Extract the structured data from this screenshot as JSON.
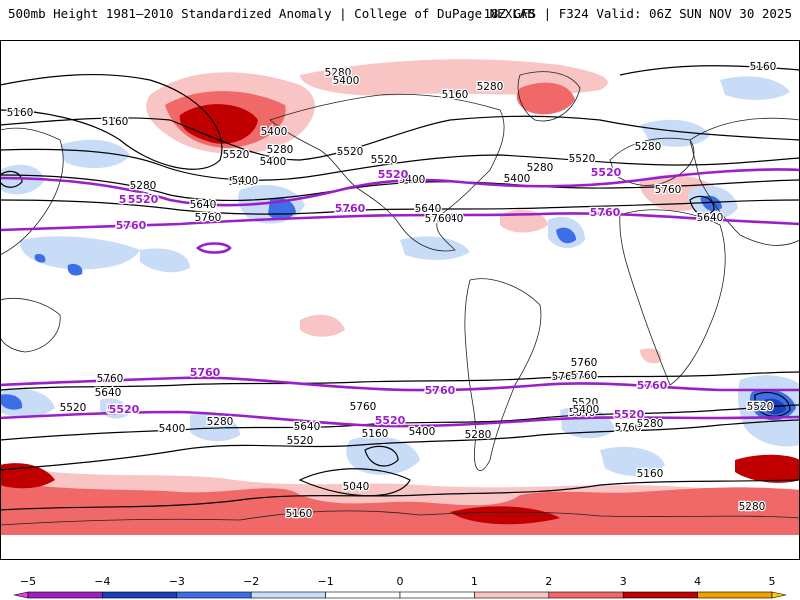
{
  "header": {
    "title": "500mb Height 1981–2010 Standardized Anomaly | College of DuPage NEXLAB",
    "run": "18Z GFS | F324 Valid: 06Z SUN NOV 30 2025"
  },
  "contour_labels": [
    "5280",
    "5400",
    "5160",
    "5280",
    "5160",
    "5400",
    "5160",
    "5520",
    "5280",
    "5400",
    "5520",
    "5400",
    "5520",
    "5280",
    "5520",
    "5400",
    "5520",
    "5400",
    "5280",
    "5520",
    "5400",
    "5640",
    "5760",
    "5640",
    "5760",
    "5280",
    "5160",
    "5760",
    "5640",
    "5640",
    "5760",
    "5760",
    "5760",
    "5640",
    "5520",
    "5760",
    "5400",
    "5520",
    "5280",
    "5640",
    "5520",
    "5160",
    "5400",
    "5280",
    "5760",
    "5640",
    "5760",
    "5520",
    "5400",
    "5760",
    "5520",
    "5280",
    "5160",
    "5040",
    "5160",
    "5280"
  ],
  "highlight_labels": [
    "5520",
    "5520",
    "5760",
    "5520",
    "5520",
    "5760",
    "5760",
    "5760",
    "5520",
    "5760",
    "5760",
    "5520",
    "5520",
    "5520"
  ],
  "colorbar": {
    "ticks": [
      "−5",
      "−4",
      "−3",
      "−2",
      "−1",
      "0",
      "1",
      "2",
      "3",
      "4",
      "5"
    ],
    "colors": [
      "#e040e0",
      "#9c1fc0",
      "#1a3fb8",
      "#3c6ee8",
      "#c8dcf8",
      "#ffffff",
      "#ffffff",
      "#f8c4c4",
      "#f06868",
      "#c00000",
      "#f0a000",
      "#ffcc00"
    ]
  }
}
